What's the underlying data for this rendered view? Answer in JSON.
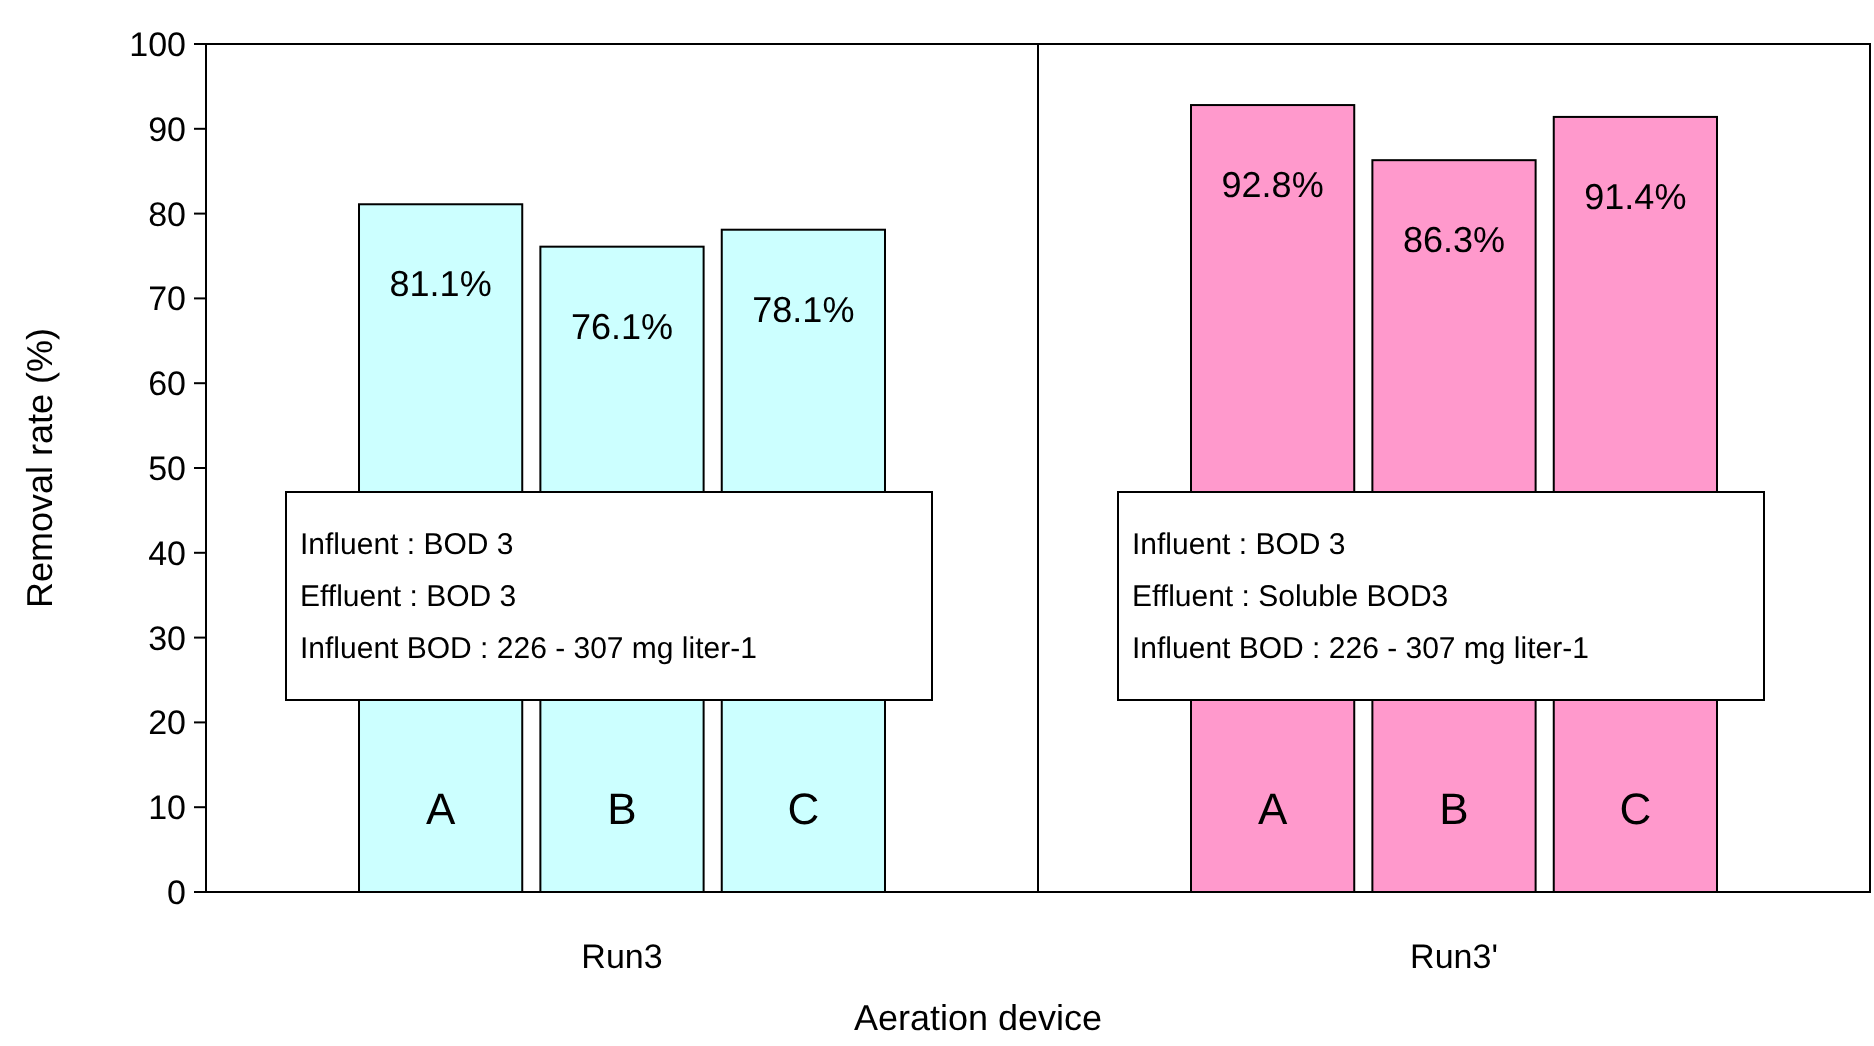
{
  "chart_data": {
    "type": "bar",
    "xlabel": "Aeration device",
    "ylabel": "Removal rate (%)",
    "categories": [
      "Run3",
      "Run3'"
    ],
    "series": [
      {
        "name": "A",
        "colors": [
          "#ccffff",
          "#ff99cc"
        ],
        "values": [
          81.1,
          92.8
        ],
        "value_labels": [
          "81.1%",
          "92.8%"
        ]
      },
      {
        "name": "B",
        "colors": [
          "#ccffff",
          "#ff99cc"
        ],
        "values": [
          76.1,
          86.3
        ],
        "value_labels": [
          "76.1%",
          "86.3%"
        ]
      },
      {
        "name": "C",
        "colors": [
          "#ccffff",
          "#ff99cc"
        ],
        "values": [
          78.1,
          91.4
        ],
        "value_labels": [
          "78.1%",
          "91.4%"
        ]
      }
    ],
    "ylim": [
      0,
      100
    ],
    "yticks": [
      0,
      10,
      20,
      30,
      40,
      50,
      60,
      70,
      80,
      90,
      100
    ],
    "grid": false,
    "annotations": [
      "Influent : BOD 3\nEffluent : BOD 3\nInfluent BOD : 226 - 307 mg liter-1",
      "Influent : BOD 3\nEffluent : Soluble BOD3\nInfluent BOD : 226 - 307 mg liter-1"
    ]
  }
}
